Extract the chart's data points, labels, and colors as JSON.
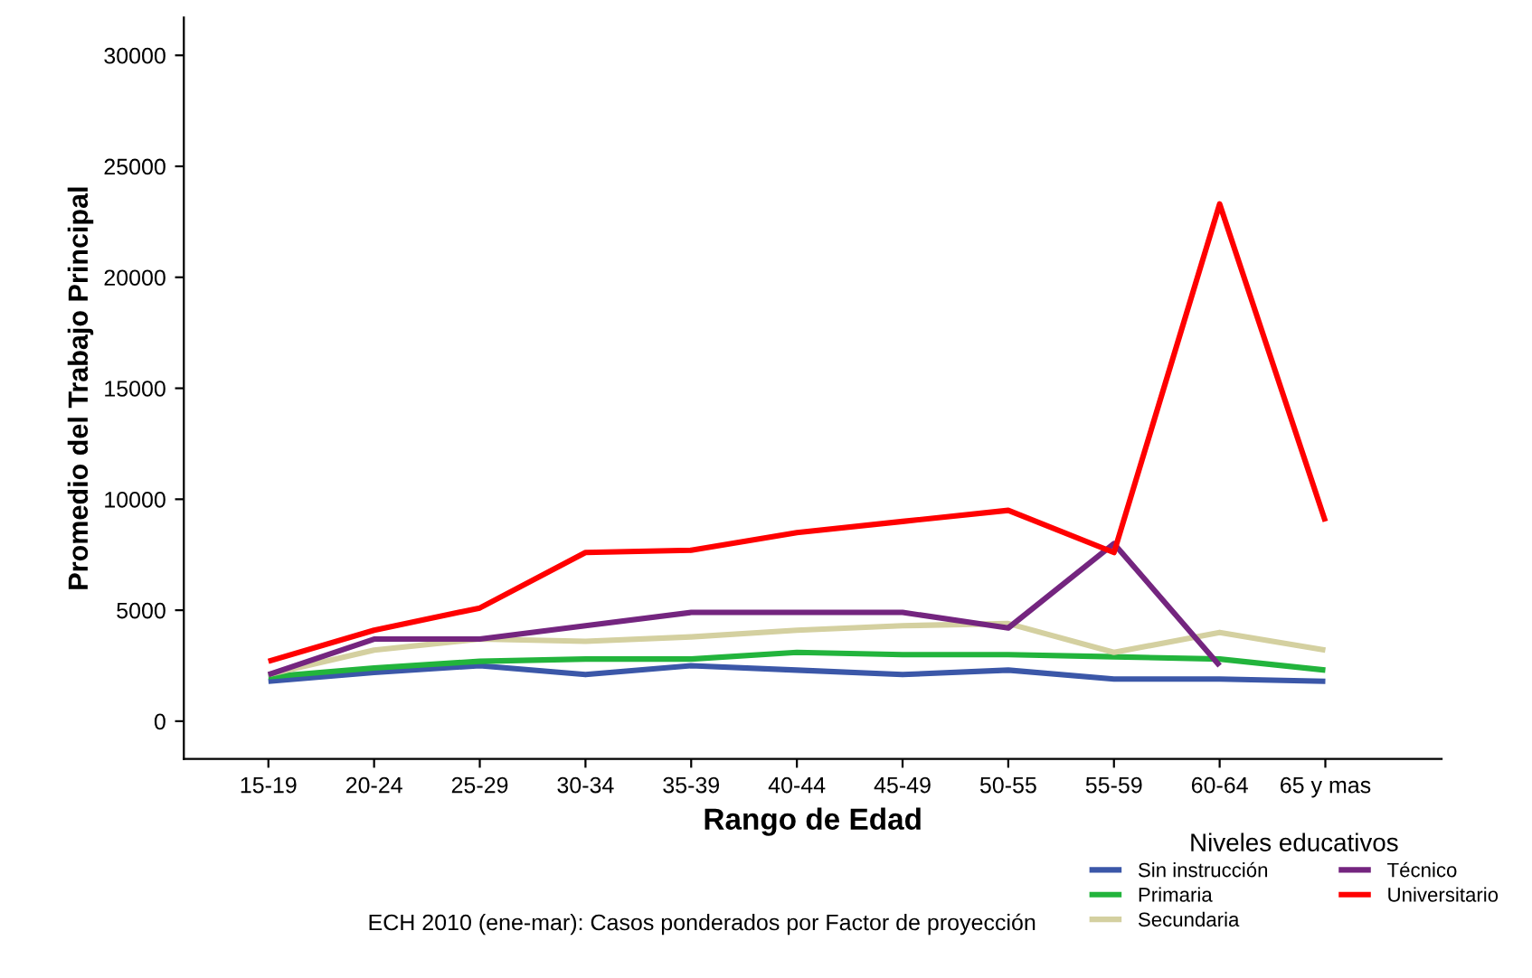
{
  "chart_data": {
    "type": "line",
    "xlabel": "Rango de Edad",
    "ylabel": "Promedio del Trabajo Principal",
    "categories": [
      "15-19",
      "20-24",
      "25-29",
      "30-34",
      "35-39",
      "40-44",
      "45-49",
      "50-55",
      "55-59",
      "60-64",
      "65 y mas"
    ],
    "series": [
      {
        "name": "Sin instrucción",
        "color": "#3b57a8",
        "values": [
          1800,
          2200,
          2500,
          2100,
          2500,
          2300,
          2100,
          2300,
          1900,
          1900,
          1800
        ]
      },
      {
        "name": "Primaria",
        "color": "#22b43c",
        "values": [
          2000,
          2400,
          2700,
          2800,
          2800,
          3100,
          3000,
          3000,
          2900,
          2800,
          2300
        ]
      },
      {
        "name": "Secundaria",
        "color": "#d4d0a0",
        "values": [
          2100,
          3200,
          3700,
          3600,
          3800,
          4100,
          4300,
          4400,
          3100,
          4000,
          3200
        ]
      },
      {
        "name": "Técnico",
        "color": "#74257f",
        "values": [
          2100,
          3700,
          3700,
          4300,
          4900,
          4900,
          4900,
          4200,
          8000,
          2500,
          null
        ]
      },
      {
        "name": "Universitario",
        "color": "#ff0000",
        "values": [
          2700,
          4100,
          5100,
          7600,
          7700,
          8500,
          9000,
          9500,
          7600,
          23300,
          9000
        ]
      }
    ],
    "ylim": [
      -1700,
      31700
    ],
    "yticks": [
      0,
      5000,
      10000,
      15000,
      20000,
      25000,
      30000
    ],
    "grid": false,
    "legend": "bottom right",
    "legend_title": "Niveles educativos",
    "annotations": [
      "ECH 2010 (ene-mar): Casos ponderados por Factor de proyección"
    ]
  }
}
